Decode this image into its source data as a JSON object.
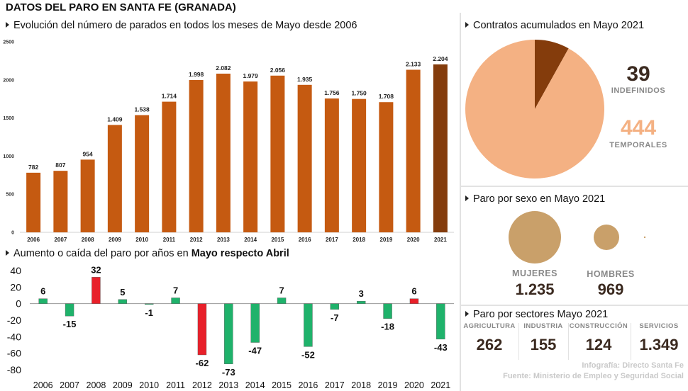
{
  "title": "DATOS DEL PARO EN SANTA FE (GRANADA)",
  "colors": {
    "bar": "#c55a11",
    "bar_highlight": "#843c0c",
    "positive": "#e8202a",
    "negative": "#1fb26b",
    "pie_temporal": "#f4b183",
    "pie_indefinido": "#843c0c",
    "circle": "#c9a06a",
    "number_dark": "#3b2a20"
  },
  "chart_data": [
    {
      "type": "bar",
      "title": "Evolución del número de parados en todos los meses de Mayo desde 2006",
      "categories": [
        "2006",
        "2007",
        "2008",
        "2009",
        "2010",
        "2011",
        "2012",
        "2013",
        "2014",
        "2015",
        "2016",
        "2017",
        "2018",
        "2019",
        "2020",
        "2021"
      ],
      "values": [
        782,
        807,
        954,
        1409,
        1538,
        1714,
        1998,
        2082,
        1979,
        2056,
        1935,
        1756,
        1750,
        1708,
        2133,
        2204
      ],
      "value_labels": [
        "782",
        "807",
        "954",
        "1.409",
        "1.538",
        "1.714",
        "1.998",
        "2.082",
        "1.979",
        "2.056",
        "1.935",
        "1.756",
        "1.750",
        "1.708",
        "2.133",
        "2.204"
      ],
      "yticks": [
        "0",
        "500",
        "1000",
        "1500",
        "2000",
        "2500"
      ],
      "ylim": [
        0,
        2500
      ],
      "highlight_index": 15
    },
    {
      "type": "bar",
      "title_pre": "Aumento o caída del paro por años en ",
      "title_bold": "Mayo respecto Abril",
      "categories": [
        "2006",
        "2007",
        "2008",
        "2009",
        "2010",
        "2011",
        "2012",
        "2013",
        "2014",
        "2015",
        "2016",
        "2017",
        "2018",
        "2019",
        "2020",
        "2021"
      ],
      "values": [
        6,
        -15,
        32,
        5,
        -1,
        7,
        -62,
        -73,
        -47,
        7,
        -52,
        -7,
        3,
        -18,
        6,
        -43
      ],
      "yticks": [
        40,
        20,
        0,
        -20,
        -40,
        -60,
        -80
      ],
      "ylim": [
        -80,
        40
      ],
      "highlight_indices": [
        2,
        6,
        14
      ]
    },
    {
      "type": "pie",
      "title": "Contratos acumulados en Mayo 2021",
      "slices": [
        {
          "label": "INDEFINIDOS",
          "value": 39,
          "display": "39"
        },
        {
          "label": "TEMPORALES",
          "value": 444,
          "display": "444"
        }
      ]
    }
  ],
  "sexo": {
    "title": "Paro por sexo en Mayo 2021",
    "mujeres_label": "MUJERES",
    "mujeres_value": "1.235",
    "hombres_label": "HOMBRES",
    "hombres_value": "969"
  },
  "sectores": {
    "title": "Paro por sectores Mayo 2021",
    "items": [
      {
        "name": "AGRICULTURA",
        "value": "262"
      },
      {
        "name": "INDUSTRIA",
        "value": "155"
      },
      {
        "name": "CONSTRUCCIÓN",
        "value": "124"
      },
      {
        "name": "SERVICIOS",
        "value": "1.349"
      }
    ]
  },
  "credits": {
    "line1_pre": "Infografía: ",
    "line1_name": "Directo Santa Fe",
    "line2": "Fuente: Ministerio de Empleo y Seguridad Social"
  }
}
